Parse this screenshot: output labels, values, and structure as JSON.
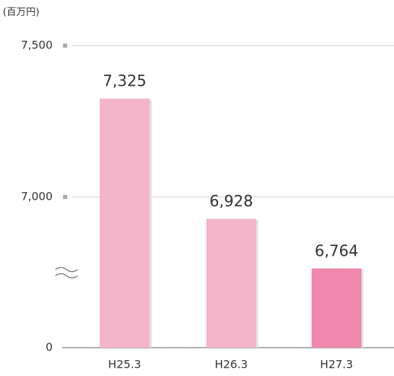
{
  "chart_data": {
    "type": "bar",
    "unit_label": "(百万円)",
    "categories": [
      "H25.3",
      "H26.3",
      "H27.3"
    ],
    "values": [
      7325,
      6928,
      6764
    ],
    "value_labels": [
      "7,325",
      "6,928",
      "6,764"
    ],
    "colors": [
      "#f4b5ca",
      "#f4b5ca",
      "#ee88ad"
    ],
    "ylim": [
      0,
      7500
    ],
    "yticks": [
      0,
      {
        "value": 7000,
        "label": "7,000"
      },
      {
        "value": 7500,
        "label": "7,500"
      }
    ],
    "axis_break": true,
    "grid": true
  }
}
